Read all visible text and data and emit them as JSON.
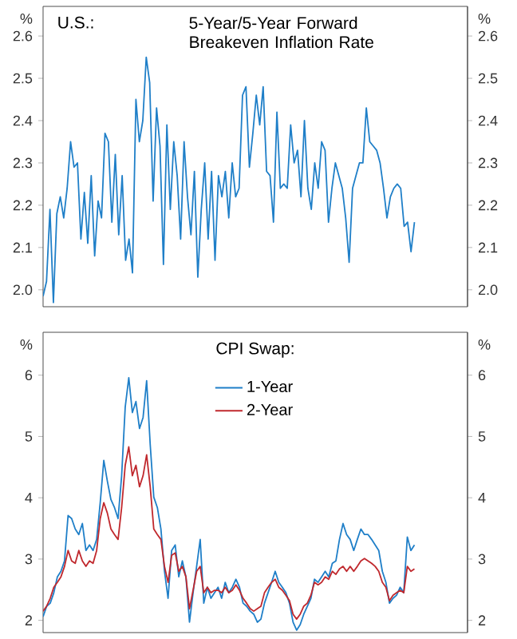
{
  "chart_data": [
    {
      "type": "line",
      "title": "5-Year/5-Year Forward Breakeven Inflation Rate",
      "annotations": [
        "U.S.:"
      ],
      "ylabel": "%",
      "y2label": "%",
      "tick_labels": "y",
      "categories": [
        null,
        null,
        null,
        null,
        null,
        null,
        null,
        null,
        null,
        null,
        null,
        null,
        null,
        null,
        null,
        null,
        null,
        null,
        null,
        null,
        null,
        null,
        null,
        null,
        null,
        null,
        null,
        null,
        null,
        null,
        null,
        null,
        null,
        null,
        null,
        null,
        null,
        null,
        null,
        null,
        null,
        null,
        null,
        null,
        null,
        null,
        null,
        null,
        null,
        null,
        null,
        null,
        null,
        null,
        null,
        null,
        null,
        null,
        null,
        null,
        null,
        null,
        null,
        null,
        null,
        null,
        null,
        null,
        null,
        null,
        null,
        null,
        null,
        null,
        null,
        null,
        null,
        null,
        null,
        null,
        null,
        null,
        null,
        null,
        null,
        null,
        null,
        null,
        null,
        null,
        null,
        null,
        null,
        null,
        null,
        null,
        null,
        null,
        null,
        null,
        null,
        null,
        null,
        null,
        null,
        null,
        null,
        null,
        null
      ],
      "series": [
        {
          "color": "#1f7fc8",
          "values": [
            1.985,
            2.02,
            2.19,
            1.97,
            2.18,
            2.22,
            2.17,
            2.24,
            2.35,
            2.29,
            2.3,
            2.12,
            2.23,
            2.11,
            2.27,
            2.08,
            2.21,
            2.17,
            2.37,
            2.35,
            2.16,
            2.32,
            2.13,
            2.27,
            2.07,
            2.12,
            2.04,
            2.45,
            2.35,
            2.4,
            2.55,
            2.49,
            2.21,
            2.43,
            2.34,
            2.06,
            2.39,
            2.19,
            2.35,
            2.27,
            2.12,
            2.35,
            2.22,
            2.13,
            2.28,
            2.03,
            2.19,
            2.3,
            2.12,
            2.28,
            2.07,
            2.27,
            2.22,
            2.28,
            2.17,
            2.3,
            2.22,
            2.24,
            2.46,
            2.48,
            2.29,
            2.37,
            2.46,
            2.39,
            2.48,
            2.28,
            2.27,
            2.16,
            2.42,
            2.24,
            2.25,
            2.24,
            2.39,
            2.3,
            2.33,
            2.22,
            2.4,
            2.24,
            2.19,
            2.3,
            2.24,
            2.35,
            2.33,
            2.16,
            2.24,
            2.3,
            2.27,
            2.24,
            2.17,
            2.065,
            2.24,
            2.27,
            2.3,
            2.3,
            2.43,
            2.35,
            2.34,
            2.33,
            2.3,
            2.24,
            2.17,
            2.22,
            2.24,
            2.25,
            2.24,
            2.15,
            2.16,
            2.09,
            2.16
          ]
        }
      ],
      "ylim": [
        1.96,
        2.67
      ],
      "yticks": [
        {
          "value": 2.0,
          "label": "2.0"
        },
        2.1,
        2.2,
        2.3,
        2.4,
        2.5,
        2.6
      ],
      "y2lim": [
        1.96,
        2.67
      ],
      "y2ticks": [
        {
          "value": 2.0,
          "label": "2.0"
        },
        2.1,
        2.2,
        2.3,
        2.4,
        2.5,
        2.6
      ],
      "line_style": "solid",
      "marker": "none",
      "grid": false,
      "legend": false
    },
    {
      "type": "line",
      "title": "CPI Swap:",
      "ylabel": "%",
      "y2label": "%",
      "tick_labels": "y",
      "legend": "top",
      "categories": [
        null,
        null,
        null,
        null,
        null,
        null,
        null,
        null,
        null,
        null,
        null,
        null,
        null,
        null,
        null,
        null,
        null,
        null,
        null,
        null,
        null,
        null,
        null,
        null,
        null,
        null,
        null,
        null,
        null,
        null,
        null,
        null,
        null,
        null,
        null,
        null,
        null,
        null,
        null,
        null,
        null,
        null,
        null,
        null,
        null,
        null,
        null,
        null,
        null,
        null,
        null,
        null,
        null,
        null,
        null,
        null,
        null,
        null,
        null,
        null,
        null,
        null,
        null,
        null,
        null,
        null,
        null,
        null,
        null,
        null,
        null,
        null,
        null,
        null,
        null,
        null,
        null,
        null,
        null,
        null,
        null,
        null,
        null,
        null,
        null,
        null,
        null,
        null,
        null,
        null,
        null,
        null,
        null,
        null,
        null,
        null,
        null,
        null,
        null,
        null,
        null,
        null,
        null,
        null,
        null
      ],
      "series": [
        {
          "name": "1-Year",
          "color": "#1f7fc8",
          "values": [
            2.06,
            2.23,
            2.28,
            2.45,
            2.71,
            2.8,
            2.97,
            3.71,
            3.66,
            3.49,
            3.4,
            3.58,
            3.14,
            3.23,
            3.14,
            3.32,
            3.92,
            4.61,
            4.27,
            3.97,
            3.84,
            3.66,
            4.36,
            5.48,
            5.96,
            5.39,
            5.57,
            5.13,
            5.31,
            5.91,
            4.87,
            4.01,
            3.84,
            3.49,
            2.8,
            2.36,
            3.14,
            3.23,
            2.71,
            2.97,
            2.71,
            1.97,
            2.45,
            2.88,
            3.32,
            2.28,
            2.54,
            2.36,
            2.45,
            2.54,
            2.36,
            2.62,
            2.45,
            2.54,
            2.67,
            2.54,
            2.28,
            2.23,
            2.15,
            2.1,
            1.97,
            2.02,
            2.28,
            2.45,
            2.62,
            2.8,
            2.62,
            2.54,
            2.45,
            2.28,
            1.97,
            1.84,
            1.93,
            2.1,
            2.23,
            2.36,
            2.67,
            2.62,
            2.71,
            2.8,
            2.71,
            2.93,
            2.97,
            3.32,
            3.58,
            3.4,
            3.32,
            3.14,
            3.32,
            3.49,
            3.4,
            3.4,
            3.32,
            3.23,
            3.14,
            2.8,
            2.62,
            2.28,
            2.36,
            2.41,
            2.54,
            2.45,
            3.36,
            3.14,
            3.23
          ]
        },
        {
          "name": "2-Year",
          "color": "#c0282d",
          "values": [
            2.15,
            2.23,
            2.36,
            2.54,
            2.62,
            2.71,
            2.88,
            3.14,
            2.97,
            2.93,
            3.14,
            2.97,
            2.88,
            2.97,
            2.93,
            3.14,
            3.66,
            3.92,
            3.75,
            3.49,
            3.4,
            3.32,
            3.84,
            4.53,
            4.83,
            4.36,
            4.53,
            4.18,
            4.36,
            4.7,
            4.18,
            3.49,
            3.4,
            3.32,
            2.88,
            2.62,
            3.06,
            3.1,
            2.8,
            2.88,
            2.71,
            2.19,
            2.49,
            2.8,
            2.88,
            2.45,
            2.54,
            2.45,
            2.49,
            2.49,
            2.45,
            2.54,
            2.45,
            2.49,
            2.58,
            2.49,
            2.36,
            2.28,
            2.19,
            2.15,
            2.19,
            2.23,
            2.45,
            2.54,
            2.62,
            2.67,
            2.54,
            2.49,
            2.41,
            2.32,
            2.1,
            2.02,
            2.1,
            2.23,
            2.28,
            2.41,
            2.62,
            2.58,
            2.62,
            2.71,
            2.67,
            2.8,
            2.75,
            2.84,
            2.88,
            2.8,
            2.88,
            2.8,
            2.88,
            2.97,
            3.01,
            2.97,
            2.93,
            2.88,
            2.8,
            2.62,
            2.54,
            2.32,
            2.41,
            2.45,
            2.49,
            2.45,
            2.88,
            2.8,
            2.84
          ]
        }
      ],
      "ylim": [
        1.8,
        6.7
      ],
      "yticks": [
        2,
        3,
        4,
        5,
        6
      ],
      "y2lim": [
        1.8,
        6.7
      ],
      "y2ticks": [
        2,
        3,
        4,
        5,
        6
      ],
      "line_style": "solid",
      "marker": "none",
      "grid": false
    }
  ]
}
